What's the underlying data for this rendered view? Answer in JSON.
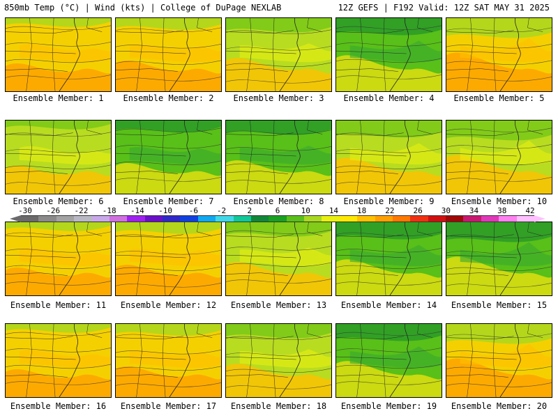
{
  "header": {
    "left": "850mb Temp (°C) | Wind (kts) | College of DuPage NEXLAB",
    "right": "12Z GEFS | F192 Valid: 12Z SAT MAY 31 2025"
  },
  "colorbar": {
    "labels": [
      "-30",
      "-26",
      "-22",
      "-18",
      "-14",
      "-10",
      "-6",
      "-2",
      "2",
      "6",
      "10",
      "14",
      "18",
      "22",
      "26",
      "30",
      "34",
      "38",
      "42"
    ],
    "colors": [
      "#6a6a6a",
      "#8a8a8a",
      "#a3a3a3",
      "#b8b8c4",
      "#c8a8e8",
      "#d070e0",
      "#a020f0",
      "#6a10c8",
      "#3028c8",
      "#1040e0",
      "#10a8f0",
      "#40d8e8",
      "#10c898",
      "#108838",
      "#18a020",
      "#58c018",
      "#a8d820",
      "#e8f010",
      "#ffe800",
      "#ffc000",
      "#ffa000",
      "#ff7800",
      "#f03010",
      "#d01010",
      "#a00808",
      "#c81870",
      "#e038b8",
      "#ff80f0",
      "#ffc0ff"
    ]
  },
  "members": [
    {
      "label": "Ensemble Member: 1",
      "scheme": "warm"
    },
    {
      "label": "Ensemble Member: 2",
      "scheme": "warm"
    },
    {
      "label": "Ensemble Member: 3",
      "scheme": "mid"
    },
    {
      "label": "Ensemble Member: 4",
      "scheme": "cool"
    },
    {
      "label": "Ensemble Member: 5",
      "scheme": "warm"
    },
    {
      "label": "Ensemble Member: 6",
      "scheme": "mid"
    },
    {
      "label": "Ensemble Member: 7",
      "scheme": "cool"
    },
    {
      "label": "Ensemble Member: 8",
      "scheme": "cool"
    },
    {
      "label": "Ensemble Member: 9",
      "scheme": "mid"
    },
    {
      "label": "Ensemble Member: 10",
      "scheme": "mid"
    },
    {
      "label": "Ensemble Member: 11",
      "scheme": "warm"
    },
    {
      "label": "Ensemble Member: 12",
      "scheme": "warm"
    },
    {
      "label": "Ensemble Member: 13",
      "scheme": "mid"
    },
    {
      "label": "Ensemble Member: 14",
      "scheme": "cool"
    },
    {
      "label": "Ensemble Member: 15",
      "scheme": "cool"
    },
    {
      "label": "Ensemble Member: 16",
      "scheme": "warm"
    },
    {
      "label": "Ensemble Member: 17",
      "scheme": "warm"
    },
    {
      "label": "Ensemble Member: 18",
      "scheme": "mid"
    },
    {
      "label": "Ensemble Member: 19",
      "scheme": "cool"
    },
    {
      "label": "Ensemble Member: 20",
      "scheme": "warm"
    }
  ],
  "schemes": {
    "warm": {
      "base": "#f5d000",
      "a": "#a8d820",
      "b": "#ffa000",
      "c": "#ffc000"
    },
    "mid": {
      "base": "#b8dc20",
      "a": "#78c818",
      "b": "#ffc000",
      "c": "#e8f010"
    },
    "cool": {
      "base": "#58c018",
      "a": "#2a9a28",
      "b": "#e8e010",
      "c": "#38a830"
    }
  }
}
